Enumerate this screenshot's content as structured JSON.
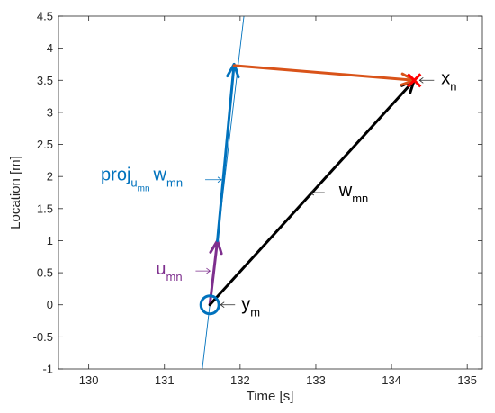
{
  "chart_data": {
    "type": "line",
    "title": "",
    "xlabel": "Time [s]",
    "ylabel": "Location [m]",
    "xlim": [
      129.6,
      135.2
    ],
    "ylim": [
      -1,
      4.5
    ],
    "grid": false,
    "xticks": [
      130,
      131,
      132,
      133,
      134,
      135
    ],
    "xtick_labels": [
      "130",
      "131",
      "132",
      "133",
      "134",
      "135"
    ],
    "yticks": [
      -1,
      -0.5,
      0,
      0.5,
      1,
      1.5,
      2,
      2.5,
      3,
      3.5,
      4,
      4.5
    ],
    "ytick_labels": [
      "-1",
      "-0.5",
      "0",
      "0.5",
      "1",
      "1.5",
      "2",
      "2.5",
      "3",
      "3.5",
      "4",
      "4.5"
    ],
    "line": {
      "x": [
        131.5,
        132.05
      ],
      "y": [
        -1,
        4.5
      ],
      "color": "#0072bd"
    },
    "points": {
      "y_m": {
        "x": 131.6,
        "y": 0,
        "marker": "circle",
        "color": "#0072bd"
      },
      "x_n": {
        "x": 134.3,
        "y": 3.5,
        "marker": "cross",
        "color": "#ff0000"
      }
    },
    "vectors": [
      {
        "id": "u_mn",
        "from": [
          131.6,
          0
        ],
        "to": [
          131.7,
          1.0
        ],
        "color": "#7e2f8e"
      },
      {
        "id": "proj",
        "from": [
          131.7,
          1.0
        ],
        "to": [
          131.92,
          3.75
        ],
        "color": "#0072bd"
      },
      {
        "id": "w_mn",
        "from": [
          131.6,
          0
        ],
        "to": [
          134.3,
          3.5
        ],
        "color": "#000000"
      },
      {
        "id": "residual",
        "from": [
          131.92,
          3.73
        ],
        "to": [
          134.3,
          3.5
        ],
        "color": "#d95319"
      }
    ],
    "annotations": {
      "x_n": {
        "main": "x",
        "sub": "n",
        "color": "#000000",
        "anchor": [
          134.3,
          3.5
        ]
      },
      "y_m": {
        "main": "y",
        "sub": "m",
        "color": "#000000",
        "anchor": [
          131.6,
          0
        ]
      },
      "w_mn": {
        "main": "w",
        "sub": "mn",
        "color": "#000000",
        "anchor": [
          132.95,
          1.75
        ]
      },
      "u_mn": {
        "main": "u",
        "sub": "mn",
        "color": "#7e2f8e",
        "anchor": [
          131.65,
          0.5
        ]
      },
      "proj": {
        "parts": [
          "proj",
          "u",
          "mn",
          "w",
          "mn"
        ],
        "color": "#0072bd",
        "anchor": [
          131.8,
          1.95
        ]
      }
    }
  }
}
